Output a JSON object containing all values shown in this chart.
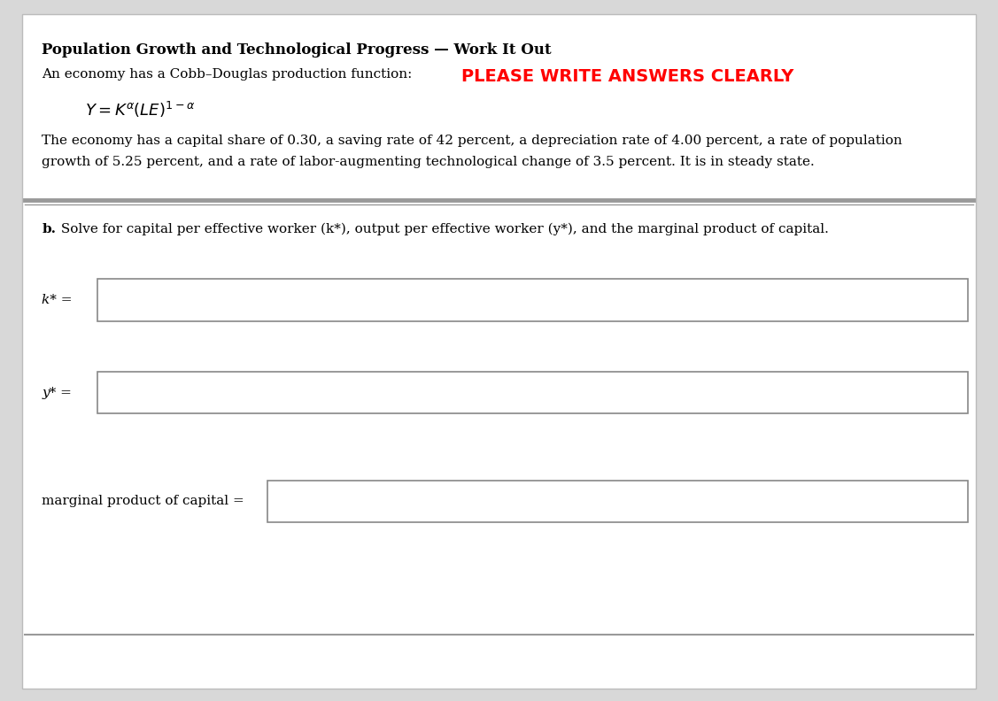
{
  "bg_color": "#d8d8d8",
  "panel_color": "#ffffff",
  "title_bold": "Population Growth and Technological Progress — Work It Out",
  "please_write": "PLEASE WRITE ANSWERS CLEARLY",
  "please_write_color": "#ff0000",
  "line1": "An economy has a Cobb–Douglas production function:",
  "desc1": "The economy has a capital share of 0.30, a saving rate of 42 percent, a depreciation rate of 4.00 percent, a rate of population",
  "desc2": "growth of 5.25 percent, and a rate of labor-augmenting technological change of 3.5 percent. It is in steady state.",
  "part_b_rest": " Solve for capital per effective worker (k*), output per effective worker (y*), and the marginal product of capital.",
  "label_k": "k* =",
  "label_y": "y* =",
  "label_mpc": "marginal product of capital =",
  "divider_color": "#888888",
  "box_border_color": "#888888",
  "font_size_title": 12,
  "font_size_body": 11,
  "font_size_formula": 13,
  "font_size_please": 14
}
